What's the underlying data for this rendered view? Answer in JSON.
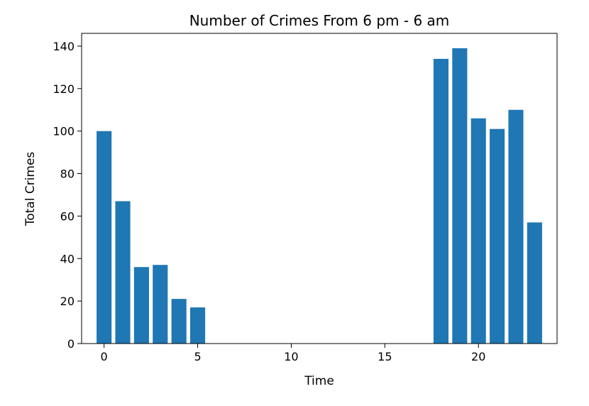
{
  "chart_data": {
    "type": "bar",
    "title": "Number of Crimes From 6 pm - 6 am",
    "xlabel": "Time",
    "ylabel": "Total Crimes",
    "x": [
      0,
      1,
      2,
      3,
      4,
      5,
      18,
      19,
      20,
      21,
      22,
      23
    ],
    "values": [
      100,
      67,
      36,
      37,
      21,
      17,
      134,
      139,
      106,
      101,
      110,
      57
    ],
    "xlim": [
      -1.2,
      24.2
    ],
    "ylim": [
      0,
      146
    ],
    "xticks": [
      0,
      5,
      10,
      15,
      20
    ],
    "yticks": [
      0,
      20,
      40,
      60,
      80,
      100,
      120,
      140
    ],
    "bar_color": "#1f77b4",
    "grid": false,
    "legend": "none"
  }
}
